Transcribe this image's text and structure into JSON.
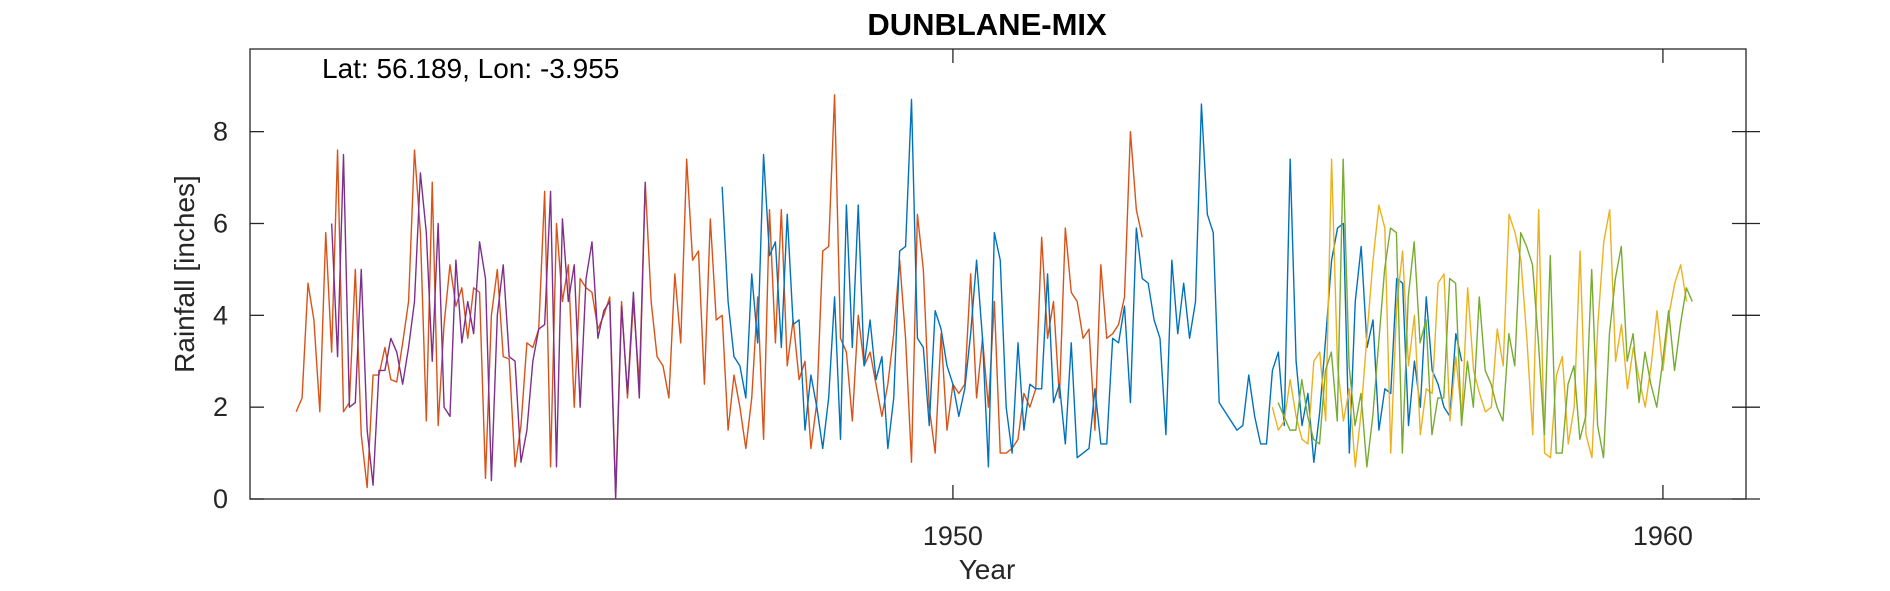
{
  "chart_data": {
    "type": "line",
    "title": "DUNBLANE-MIX",
    "annotation": "Lat: 56.189, Lon: -3.955",
    "xlabel": "Year",
    "ylabel": "Rainfall [inches]",
    "xlim": [
      1940.1,
      1961.17
    ],
    "ylim": [
      0,
      9.8
    ],
    "xticks": [
      1950,
      1960
    ],
    "xtick_labels": [
      "1950",
      "1960"
    ],
    "yticks": [
      0,
      2,
      4,
      6,
      8
    ],
    "ytick_labels": [
      "0",
      "2",
      "4",
      "6",
      "8"
    ],
    "grid": false,
    "legend": "none",
    "series": [
      {
        "color": "#d95319",
        "x_start": 1940.75,
        "values": [
          1.9,
          2.2,
          4.7,
          3.9,
          1.9,
          5.8,
          3.2,
          7.6,
          1.9,
          2.1,
          5.0,
          1.4,
          0.25,
          2.7,
          2.7,
          3.3,
          2.6,
          2.55,
          3.4,
          4.3,
          7.6,
          5.8,
          1.7,
          6.9,
          1.6,
          3.8,
          5.1,
          4.2,
          4.6,
          3.5,
          4.6,
          4.5,
          0.45,
          4.0,
          5.0,
          3.1,
          3.05,
          0.7,
          1.6,
          3.4,
          3.3,
          3.7,
          6.7,
          0.7,
          6.0,
          4.3,
          5.1,
          2.0,
          4.8,
          4.6,
          4.5,
          3.7,
          4.0,
          4.4,
          0.1,
          4.3,
          2.2,
          4.3,
          2.5,
          6.9,
          4.3,
          3.1,
          2.9,
          2.2,
          4.9,
          3.4,
          7.4,
          5.2,
          5.4,
          2.5,
          6.1,
          3.9,
          4.0,
          1.5,
          2.7,
          2.0,
          1.1,
          2.2,
          4.4,
          1.3,
          6.3,
          3.4,
          6.3,
          2.9,
          3.9,
          2.6,
          3.0,
          1.1,
          2.1,
          5.4,
          5.5,
          8.8,
          3.5,
          3.2,
          1.7,
          4.0,
          2.9,
          3.2,
          2.5,
          1.8,
          2.5,
          3.6,
          5.2,
          3.5,
          0.8,
          6.2,
          5.0,
          2.0,
          1.0,
          3.6,
          1.5,
          2.5,
          2.3,
          2.5,
          4.9,
          2.2,
          3.5,
          2.0,
          4.3,
          1.0,
          1.0,
          1.1,
          1.3,
          2.3,
          2.0,
          2.4,
          5.7,
          3.5,
          4.3,
          2.2,
          5.9,
          4.5,
          4.3,
          3.5,
          3.7,
          1.5,
          5.1,
          3.5,
          3.6,
          3.8,
          4.4,
          8.0,
          6.3,
          5.7
        ]
      },
      {
        "color": "#7e2f8e",
        "x_start": 1941.25,
        "values": [
          6.0,
          3.1,
          7.5,
          2.0,
          2.1,
          5.0,
          1.5,
          0.3,
          2.8,
          2.8,
          3.5,
          3.2,
          2.5,
          3.3,
          4.3,
          7.1,
          5.8,
          3.0,
          6.0,
          2.0,
          1.8,
          5.2,
          3.4,
          4.3,
          3.6,
          5.6,
          4.8,
          0.4,
          4.0,
          5.1,
          3.1,
          3.0,
          0.8,
          1.5,
          3.0,
          3.7,
          3.8,
          6.7,
          0.7,
          6.1,
          4.3,
          5.1,
          2.0,
          4.8,
          5.6,
          3.5,
          4.1,
          4.3,
          0.0,
          4.2,
          2.3,
          4.5,
          2.2,
          6.9
        ]
      },
      {
        "color": "#0072bd",
        "x_start": 1946.75,
        "values": [
          6.8,
          4.3,
          3.1,
          2.9,
          2.2,
          4.9,
          3.4,
          7.5,
          5.3,
          5.6,
          3.3,
          6.2,
          3.8,
          3.9,
          1.5,
          2.7,
          2.0,
          1.1,
          2.2,
          4.4,
          1.3,
          6.4,
          3.3,
          6.4,
          2.9,
          3.9,
          2.6,
          3.1,
          1.1,
          2.2,
          5.4,
          5.5,
          8.7,
          3.5,
          3.3,
          1.6,
          4.1,
          3.7,
          2.9,
          2.5,
          1.8,
          2.4,
          3.6,
          5.2,
          3.5,
          0.7,
          5.8,
          5.2,
          2.0,
          1.0,
          3.4,
          1.5,
          2.5,
          2.4,
          2.4,
          4.9,
          2.1,
          2.5,
          1.2,
          3.4,
          0.9,
          1.0,
          1.1,
          2.4,
          1.2,
          1.2,
          3.5,
          3.4,
          4.2,
          2.1,
          5.9,
          4.8,
          4.7,
          3.9,
          3.5,
          1.4,
          5.2,
          3.6,
          4.7,
          3.5,
          4.3,
          8.6,
          6.2,
          5.8,
          2.1,
          1.9,
          1.7,
          1.5,
          1.6,
          2.7,
          1.8,
          1.2,
          1.2,
          2.8,
          3.2,
          1.6,
          7.4,
          3.0,
          1.6,
          2.3,
          0.8,
          1.9,
          3.5,
          5.2,
          5.9,
          6.0,
          1.0,
          4.3,
          5.5,
          3.3,
          3.9,
          1.5,
          2.4,
          2.3,
          4.8,
          4.7,
          1.6,
          3.0,
          2.0,
          4.4,
          2.8,
          2.5,
          2.0,
          1.8,
          3.6,
          3.0
        ]
      },
      {
        "color": "#edb120",
        "x_start": 1954.5,
        "values": [
          2.0,
          1.5,
          1.7,
          2.6,
          1.8,
          1.3,
          1.2,
          3.0,
          3.2,
          1.7,
          7.4,
          2.9,
          1.7,
          2.4,
          0.7,
          1.9,
          3.6,
          5.2,
          6.4,
          5.9,
          1.0,
          4.2,
          5.4,
          2.9,
          4.0,
          1.4,
          2.4,
          2.3,
          4.7,
          4.9,
          1.7,
          3.1,
          1.8,
          4.6,
          2.8,
          2.3,
          1.9,
          2.0,
          3.7,
          2.9,
          6.2,
          5.8,
          5.2,
          3.5,
          1.4,
          6.3,
          1.0,
          0.9,
          2.7,
          3.1,
          1.2,
          2.0,
          5.4,
          1.4,
          0.9,
          3.8,
          5.6,
          6.3,
          3.0,
          3.8,
          2.4,
          3.3,
          2.6,
          2.0,
          2.9,
          4.1,
          2.8,
          4.0,
          4.7,
          5.1,
          4.3
        ]
      },
      {
        "color": "#77ac30",
        "x_start": 1954.58,
        "values": [
          2.1,
          1.8,
          1.5,
          1.5,
          2.6,
          1.8,
          1.3,
          1.2,
          2.8,
          3.2,
          1.7,
          7.4,
          2.9,
          1.6,
          2.3,
          0.7,
          1.8,
          3.4,
          5.0,
          5.9,
          5.8,
          1.0,
          4.4,
          5.6,
          3.4,
          3.9,
          1.4,
          2.2,
          2.2,
          4.8,
          4.7,
          1.6,
          3.0,
          2.0,
          4.4,
          2.8,
          2.5,
          2.0,
          1.7,
          3.6,
          2.9,
          5.8,
          5.5,
          5.1,
          3.4,
          1.4,
          5.3,
          1.0,
          1.0,
          2.5,
          2.9,
          1.3,
          1.8,
          5.0,
          1.6,
          0.9,
          3.6,
          4.8,
          5.5,
          3.0,
          3.6,
          2.1,
          3.2,
          2.5,
          2.0,
          3.0,
          4.1,
          2.8,
          3.8,
          4.6,
          4.3
        ]
      }
    ]
  }
}
